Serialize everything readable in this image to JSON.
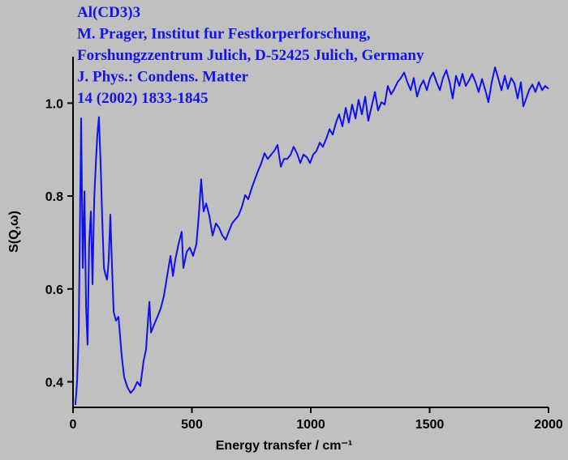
{
  "chart_data": {
    "type": "line",
    "annotations": [
      "Al(CD3)3",
      "M. Prager,  Institut fur Festkorperforschung,",
      "Forshungzzentrum Julich, D-52425 Julich, Germany",
      "J. Phys.: Condens. Matter",
      "14 (2002) 1833-1845"
    ],
    "xlabel": "Energy transfer / cm⁻¹",
    "ylabel": "S(Q,ω)",
    "xlim": [
      0,
      2000
    ],
    "ylim": [
      0.345,
      1.1
    ],
    "xticks": [
      0,
      500,
      1000,
      1500,
      2000
    ],
    "yticks": [
      0.4,
      0.6,
      0.8,
      {
        "value": 1,
        "label": "1.0"
      }
    ],
    "color": "#1010ee",
    "x": [
      10,
      17,
      24,
      34,
      41,
      48,
      55,
      61,
      68,
      75,
      82,
      89,
      96,
      102,
      109,
      116,
      123,
      130,
      137,
      143,
      150,
      157,
      164,
      171,
      181,
      191,
      205,
      215,
      229,
      242,
      256,
      270,
      283,
      297,
      307,
      314,
      321,
      328,
      341,
      355,
      369,
      382,
      396,
      410,
      420,
      430,
      444,
      457,
      464,
      478,
      491,
      505,
      519,
      529,
      539,
      549,
      560,
      573,
      587,
      601,
      614,
      628,
      642,
      655,
      669,
      683,
      696,
      710,
      724,
      737,
      751,
      765,
      778,
      792,
      805,
      819,
      833,
      846,
      860,
      874,
      887,
      901,
      915,
      928,
      942,
      956,
      969,
      983,
      997,
      1010,
      1024,
      1038,
      1051,
      1065,
      1079,
      1092,
      1106,
      1119,
      1133,
      1147,
      1160,
      1174,
      1188,
      1201,
      1215,
      1229,
      1242,
      1256,
      1270,
      1283,
      1297,
      1311,
      1324,
      1338,
      1352,
      1365,
      1379,
      1393,
      1406,
      1420,
      1433,
      1447,
      1461,
      1474,
      1488,
      1502,
      1515,
      1529,
      1543,
      1556,
      1570,
      1584,
      1597,
      1611,
      1625,
      1638,
      1652,
      1666,
      1679,
      1693,
      1706,
      1720,
      1734,
      1747,
      1761,
      1775,
      1788,
      1802,
      1816,
      1829,
      1843,
      1857,
      1870,
      1884,
      1894,
      1904,
      1918,
      1932,
      1945,
      1959,
      1973,
      1986,
      2000
    ],
    "values": [
      0.35,
      0.4,
      0.506,
      0.967,
      0.645,
      0.81,
      0.56,
      0.48,
      0.7,
      0.767,
      0.61,
      0.793,
      0.87,
      0.93,
      0.97,
      0.87,
      0.75,
      0.645,
      0.63,
      0.62,
      0.66,
      0.76,
      0.645,
      0.55,
      0.532,
      0.54,
      0.454,
      0.41,
      0.388,
      0.376,
      0.384,
      0.4,
      0.391,
      0.445,
      0.47,
      0.523,
      0.572,
      0.506,
      0.523,
      0.54,
      0.558,
      0.584,
      0.628,
      0.671,
      0.628,
      0.663,
      0.697,
      0.723,
      0.645,
      0.68,
      0.689,
      0.671,
      0.697,
      0.758,
      0.836,
      0.767,
      0.784,
      0.758,
      0.715,
      0.741,
      0.732,
      0.715,
      0.706,
      0.723,
      0.741,
      0.75,
      0.758,
      0.776,
      0.802,
      0.793,
      0.816,
      0.836,
      0.854,
      0.871,
      0.892,
      0.88,
      0.889,
      0.897,
      0.91,
      0.863,
      0.88,
      0.88,
      0.889,
      0.906,
      0.892,
      0.871,
      0.889,
      0.884,
      0.871,
      0.889,
      0.897,
      0.915,
      0.906,
      0.923,
      0.944,
      0.932,
      0.958,
      0.976,
      0.95,
      0.99,
      0.958,
      0.997,
      0.967,
      1.007,
      0.976,
      1.014,
      0.962,
      0.993,
      1.024,
      0.984,
      1.002,
      0.997,
      1.037,
      1.019,
      1.031,
      1.045,
      1.054,
      1.066,
      1.045,
      1.028,
      1.054,
      1.014,
      1.037,
      1.049,
      1.028,
      1.054,
      1.066,
      1.045,
      1.028,
      1.054,
      1.071,
      1.045,
      1.01,
      1.059,
      1.037,
      1.063,
      1.037,
      1.049,
      1.063,
      1.045,
      1.024,
      1.052,
      1.028,
      1.002,
      1.045,
      1.077,
      1.054,
      1.028,
      1.059,
      1.031,
      1.054,
      1.042,
      1.01,
      1.045,
      0.993,
      1.007,
      1.028,
      1.04,
      1.024,
      1.045,
      1.028,
      1.037,
      1.031
    ]
  }
}
